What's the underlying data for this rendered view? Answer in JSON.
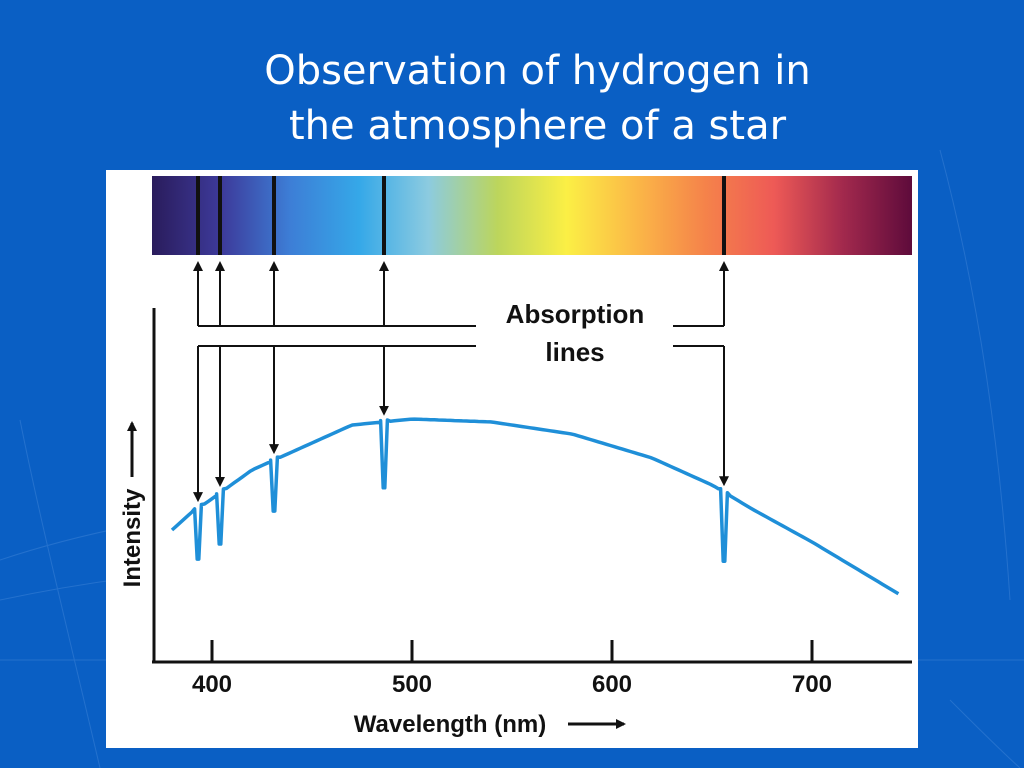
{
  "slide": {
    "title_line1": "Observation of hydrogen in",
    "title_line2": "the atmosphere of a star",
    "background_color": "#0a5fc4",
    "title_color": "#ffffff"
  },
  "chart_data": {
    "type": "line",
    "title": "",
    "xlabel": "Wavelength (nm)",
    "ylabel": "Intensity",
    "xlim": [
      370,
      750
    ],
    "x_ticks": [
      400,
      500,
      600,
      700
    ],
    "x_tick_labels": [
      "400",
      "500",
      "600",
      "700"
    ],
    "grid": false,
    "series": [
      {
        "color": "#1f8fd8",
        "x": [
          380,
          390,
          397,
          420,
          470,
          500,
          540,
          580,
          620,
          650,
          670,
          700,
          720,
          745
        ],
        "y": [
          0.4,
          0.46,
          0.49,
          0.6,
          0.75,
          0.77,
          0.76,
          0.72,
          0.64,
          0.55,
          0.47,
          0.36,
          0.28,
          0.18
        ]
      }
    ],
    "absorption_lines": [
      {
        "wavelength": 393,
        "depth": 0.17
      },
      {
        "wavelength": 404,
        "depth": 0.17
      },
      {
        "wavelength": 431,
        "depth": 0.17
      },
      {
        "wavelength": 486,
        "depth": 0.22
      },
      {
        "wavelength": 656,
        "depth": 0.23
      }
    ],
    "annotation": {
      "line1": "Absorption",
      "line2": "lines"
    },
    "spectrum_colors": [
      "#2a1c5c",
      "#3d3a9a",
      "#3d7ed6",
      "#35a8e8",
      "#8ccbe0",
      "#bcd55c",
      "#fbef45",
      "#fbb847",
      "#f5834a",
      "#ee5a56",
      "#a2294d",
      "#5e0b3b"
    ]
  }
}
